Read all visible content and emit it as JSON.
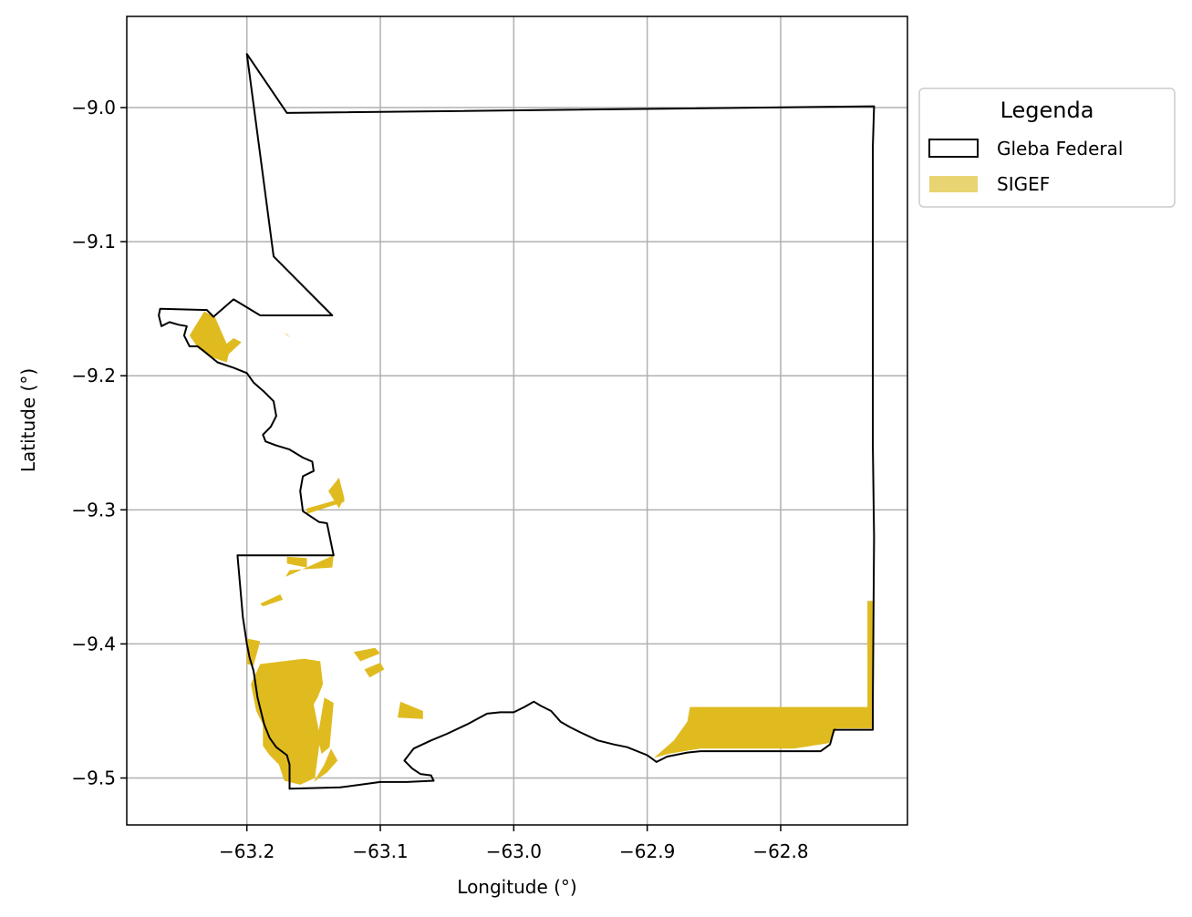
{
  "axes": {
    "xlabel": "Longitude (°)",
    "ylabel": "Latitude (°)",
    "xlim": [
      -63.29,
      -62.705
    ],
    "ylim": [
      -9.535,
      -8.932
    ],
    "xticks": [
      {
        "value": -63.2,
        "label": "−63.2"
      },
      {
        "value": -63.1,
        "label": "−63.1"
      },
      {
        "value": -63.0,
        "label": "−63.0"
      },
      {
        "value": -62.9,
        "label": "−62.9"
      },
      {
        "value": -62.8,
        "label": "−62.8"
      }
    ],
    "yticks": [
      {
        "value": -9.0,
        "label": "−9.0"
      },
      {
        "value": -9.1,
        "label": "−9.1"
      },
      {
        "value": -9.2,
        "label": "−9.2"
      },
      {
        "value": -9.3,
        "label": "−9.3"
      },
      {
        "value": -9.4,
        "label": "−9.4"
      },
      {
        "value": -9.5,
        "label": "−9.5"
      }
    ],
    "grid": true
  },
  "legend": {
    "title": "Legenda",
    "placement": "outside upper right",
    "items": [
      {
        "label": "Gleba Federal",
        "kind": "outline",
        "color": "#000000"
      },
      {
        "label": "SIGEF",
        "kind": "fill",
        "color": "#e8d473"
      }
    ]
  },
  "colors": {
    "boundary": "#000000",
    "sigef": "#e0bb20",
    "grid": "#b0b0b0"
  },
  "map_layers": {
    "gleba_federal_boundary": [
      [
        -63.2,
        -8.96
      ],
      [
        -63.17,
        -9.004
      ],
      [
        -62.73,
        -8.999
      ],
      [
        -62.731,
        -9.03
      ],
      [
        -62.731,
        -9.25
      ],
      [
        -62.73,
        -9.32
      ],
      [
        -62.731,
        -9.447
      ],
      [
        -62.731,
        -9.464
      ],
      [
        -62.76,
        -9.464
      ],
      [
        -62.763,
        -9.475
      ],
      [
        -62.77,
        -9.48
      ],
      [
        -62.79,
        -9.48
      ],
      [
        -62.86,
        -9.48
      ],
      [
        -62.87,
        -9.481
      ],
      [
        -62.885,
        -9.484
      ],
      [
        -62.893,
        -9.488
      ],
      [
        -62.9,
        -9.483
      ],
      [
        -62.915,
        -9.477
      ],
      [
        -62.925,
        -9.475
      ],
      [
        -62.937,
        -9.472
      ],
      [
        -62.95,
        -9.466
      ],
      [
        -62.958,
        -9.462
      ],
      [
        -62.965,
        -9.458
      ],
      [
        -62.972,
        -9.45
      ],
      [
        -62.98,
        -9.446
      ],
      [
        -62.985,
        -9.443
      ],
      [
        -62.992,
        -9.447
      ],
      [
        -63.0,
        -9.451
      ],
      [
        -63.01,
        -9.451
      ],
      [
        -63.02,
        -9.452
      ],
      [
        -63.035,
        -9.46
      ],
      [
        -63.05,
        -9.467
      ],
      [
        -63.062,
        -9.472
      ],
      [
        -63.075,
        -9.478
      ],
      [
        -63.082,
        -9.487
      ],
      [
        -63.076,
        -9.493
      ],
      [
        -63.07,
        -9.497
      ],
      [
        -63.062,
        -9.498
      ],
      [
        -63.06,
        -9.502
      ],
      [
        -63.08,
        -9.503
      ],
      [
        -63.1,
        -9.503
      ],
      [
        -63.13,
        -9.507
      ],
      [
        -63.168,
        -9.508
      ],
      [
        -63.168,
        -9.49
      ],
      [
        -63.17,
        -9.483
      ],
      [
        -63.178,
        -9.477
      ],
      [
        -63.183,
        -9.47
      ],
      [
        -63.187,
        -9.46
      ],
      [
        -63.192,
        -9.44
      ],
      [
        -63.195,
        -9.42
      ],
      [
        -63.198,
        -9.41
      ],
      [
        -63.2,
        -9.4
      ],
      [
        -63.203,
        -9.38
      ],
      [
        -63.207,
        -9.334
      ],
      [
        -63.135,
        -9.334
      ],
      [
        -63.14,
        -9.31
      ],
      [
        -63.146,
        -9.309
      ],
      [
        -63.158,
        -9.301
      ],
      [
        -63.16,
        -9.286
      ],
      [
        -63.158,
        -9.275
      ],
      [
        -63.15,
        -9.271
      ],
      [
        -63.151,
        -9.264
      ],
      [
        -63.158,
        -9.261
      ],
      [
        -63.168,
        -9.255
      ],
      [
        -63.178,
        -9.252
      ],
      [
        -63.186,
        -9.249
      ],
      [
        -63.188,
        -9.244
      ],
      [
        -63.182,
        -9.238
      ],
      [
        -63.178,
        -9.23
      ],
      [
        -63.18,
        -9.219
      ],
      [
        -63.187,
        -9.212
      ],
      [
        -63.195,
        -9.205
      ],
      [
        -63.2,
        -9.198
      ],
      [
        -63.21,
        -9.194
      ],
      [
        -63.222,
        -9.19
      ],
      [
        -63.233,
        -9.181
      ],
      [
        -63.237,
        -9.178
      ],
      [
        -63.243,
        -9.178
      ],
      [
        -63.247,
        -9.17
      ],
      [
        -63.245,
        -9.163
      ],
      [
        -63.251,
        -9.162
      ],
      [
        -63.258,
        -9.16
      ],
      [
        -63.264,
        -9.163
      ],
      [
        -63.266,
        -9.155
      ],
      [
        -63.265,
        -9.15
      ],
      [
        -63.23,
        -9.151
      ],
      [
        -63.225,
        -9.156
      ],
      [
        -63.21,
        -9.143
      ],
      [
        -63.19,
        -9.155
      ],
      [
        -63.136,
        -9.155
      ],
      [
        -63.18,
        -9.111
      ],
      [
        -63.2,
        -8.96
      ]
    ],
    "sigef_parcels": [
      [
        [
          -62.895,
          -9.485
        ],
        [
          -62.88,
          -9.472
        ],
        [
          -62.87,
          -9.458
        ],
        [
          -62.868,
          -9.447
        ],
        [
          -62.735,
          -9.447
        ],
        [
          -62.735,
          -9.368
        ],
        [
          -62.731,
          -9.368
        ],
        [
          -62.731,
          -9.463
        ],
        [
          -62.758,
          -9.463
        ],
        [
          -62.764,
          -9.474
        ],
        [
          -62.79,
          -9.478
        ],
        [
          -62.86,
          -9.478
        ],
        [
          -62.884,
          -9.482
        ]
      ],
      [
        [
          -63.243,
          -9.17
        ],
        [
          -63.232,
          -9.152
        ],
        [
          -63.224,
          -9.156
        ],
        [
          -63.213,
          -9.181
        ],
        [
          -63.215,
          -9.19
        ],
        [
          -63.227,
          -9.186
        ],
        [
          -63.236,
          -9.18
        ]
      ],
      [
        [
          -63.225,
          -9.184
        ],
        [
          -63.21,
          -9.172
        ],
        [
          -63.204,
          -9.175
        ],
        [
          -63.219,
          -9.189
        ]
      ],
      [
        [
          -63.177,
          -9.166
        ],
        [
          -63.17,
          -9.169
        ],
        [
          -63.167,
          -9.172
        ],
        [
          -63.172,
          -9.168
        ]
      ],
      [
        [
          -63.139,
          -9.286
        ],
        [
          -63.131,
          -9.299
        ],
        [
          -63.127,
          -9.291
        ],
        [
          -63.131,
          -9.276
        ]
      ],
      [
        [
          -63.155,
          -9.299
        ],
        [
          -63.127,
          -9.291
        ],
        [
          -63.127,
          -9.294
        ],
        [
          -63.155,
          -9.303
        ]
      ],
      [
        [
          -63.171,
          -9.35
        ],
        [
          -63.135,
          -9.334
        ],
        [
          -63.136,
          -9.343
        ],
        [
          -63.168,
          -9.345
        ]
      ],
      [
        [
          -63.17,
          -9.335
        ],
        [
          -63.155,
          -9.336
        ],
        [
          -63.155,
          -9.343
        ],
        [
          -63.17,
          -9.34
        ]
      ],
      [
        [
          -63.19,
          -9.37
        ],
        [
          -63.175,
          -9.363
        ],
        [
          -63.173,
          -9.367
        ],
        [
          -63.188,
          -9.372
        ]
      ],
      [
        [
          -63.2,
          -9.396
        ],
        [
          -63.19,
          -9.398
        ],
        [
          -63.195,
          -9.416
        ],
        [
          -63.2,
          -9.415
        ]
      ],
      [
        [
          -63.19,
          -9.415
        ],
        [
          -63.157,
          -9.411
        ],
        [
          -63.145,
          -9.413
        ],
        [
          -63.143,
          -9.43
        ],
        [
          -63.147,
          -9.44
        ],
        [
          -63.15,
          -9.445
        ],
        [
          -63.145,
          -9.47
        ],
        [
          -63.149,
          -9.5
        ],
        [
          -63.16,
          -9.505
        ],
        [
          -63.172,
          -9.502
        ],
        [
          -63.176,
          -9.49
        ],
        [
          -63.183,
          -9.483
        ],
        [
          -63.188,
          -9.476
        ],
        [
          -63.188,
          -9.46
        ],
        [
          -63.193,
          -9.45
        ],
        [
          -63.197,
          -9.43
        ]
      ],
      [
        [
          -63.142,
          -9.44
        ],
        [
          -63.135,
          -9.444
        ],
        [
          -63.138,
          -9.477
        ],
        [
          -63.144,
          -9.482
        ],
        [
          -63.147,
          -9.47
        ]
      ],
      [
        [
          -63.137,
          -9.478
        ],
        [
          -63.132,
          -9.487
        ],
        [
          -63.14,
          -9.496
        ],
        [
          -63.15,
          -9.503
        ],
        [
          -63.142,
          -9.49
        ]
      ],
      [
        [
          -63.12,
          -9.406
        ],
        [
          -63.104,
          -9.403
        ],
        [
          -63.1,
          -9.407
        ],
        [
          -63.115,
          -9.413
        ]
      ],
      [
        [
          -63.112,
          -9.419
        ],
        [
          -63.1,
          -9.414
        ],
        [
          -63.097,
          -9.419
        ],
        [
          -63.108,
          -9.425
        ]
      ],
      [
        [
          -63.085,
          -9.443
        ],
        [
          -63.068,
          -9.45
        ],
        [
          -63.068,
          -9.456
        ],
        [
          -63.087,
          -9.455
        ]
      ]
    ]
  }
}
